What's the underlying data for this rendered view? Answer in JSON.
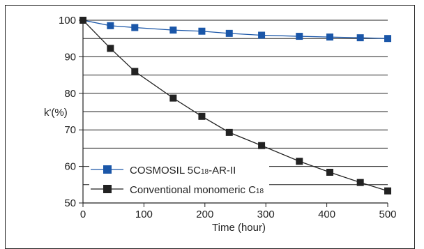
{
  "chart_data": {
    "type": "line",
    "title": "",
    "xlabel": "Time (hour)",
    "ylabel": "k'(%)",
    "xlim": [
      0,
      500
    ],
    "ylim": [
      50,
      100
    ],
    "x_ticks": [
      0,
      100,
      200,
      300,
      400,
      500
    ],
    "y_ticks": [
      50,
      60,
      70,
      80,
      90,
      100
    ],
    "grid": "horizontal lines every 5%",
    "legend_position": "bottom-left",
    "series": [
      {
        "name": "COSMOSIL 5C18-AR-II",
        "color": "#1a56a8",
        "marker": "square",
        "x": [
          0,
          45,
          85,
          148,
          195,
          240,
          293,
          355,
          405,
          455,
          500
        ],
        "y": [
          100,
          98.5,
          98,
          97.3,
          97,
          96.4,
          95.9,
          95.6,
          95.4,
          95.2,
          95
        ]
      },
      {
        "name": "Conventional monomeric C18",
        "color": "#222222",
        "marker": "square",
        "x": [
          0,
          45,
          85,
          148,
          195,
          240,
          293,
          355,
          405,
          455,
          500
        ],
        "y": [
          100,
          92.3,
          86,
          78.7,
          73.7,
          69.3,
          65.7,
          61.4,
          58.4,
          55.6,
          53.3
        ]
      }
    ]
  },
  "legend": {
    "item1_main": "COSMOSIL 5C",
    "item1_sub": "18",
    "item1_tail": "-AR-II",
    "item2_main": "Conventional monomeric C",
    "item2_sub": "18"
  }
}
